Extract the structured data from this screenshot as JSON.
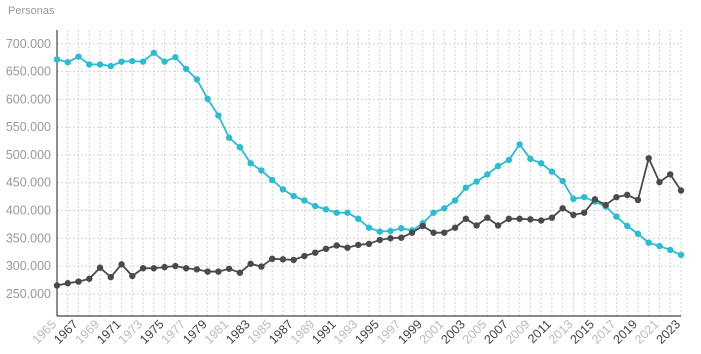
{
  "chart_data": {
    "type": "line",
    "ylabel": "Personas",
    "ylim": [
      210000,
      725000
    ],
    "yticks": [
      250000,
      300000,
      350000,
      400000,
      450000,
      500000,
      550000,
      600000,
      650000,
      700000
    ],
    "ytick_labels": [
      "250.000",
      "300.000",
      "350.000",
      "400.000",
      "450.000",
      "500.000",
      "550.000",
      "600.000",
      "650.000",
      "700.000"
    ],
    "x": [
      1965,
      1966,
      1967,
      1968,
      1969,
      1970,
      1971,
      1972,
      1973,
      1974,
      1975,
      1976,
      1977,
      1978,
      1979,
      1980,
      1981,
      1982,
      1983,
      1984,
      1985,
      1986,
      1987,
      1988,
      1989,
      1990,
      1991,
      1992,
      1993,
      1994,
      1995,
      1996,
      1997,
      1998,
      1999,
      2000,
      2001,
      2002,
      2003,
      2004,
      2005,
      2006,
      2007,
      2008,
      2009,
      2010,
      2011,
      2012,
      2013,
      2014,
      2015,
      2016,
      2017,
      2018,
      2019,
      2020,
      2021,
      2022,
      2023
    ],
    "xtick_labels": [
      "1965",
      "1967",
      "1969",
      "1971",
      "1973",
      "1975",
      "1977",
      "1979",
      "1981",
      "1983",
      "1985",
      "1987",
      "1989",
      "1991",
      "1993",
      "1995",
      "1997",
      "1999",
      "2001",
      "2003",
      "2005",
      "2007",
      "2009",
      "2011",
      "2013",
      "2015",
      "2017",
      "2019",
      "2021",
      "2023"
    ],
    "xtick_dim": [
      true,
      false,
      true,
      false,
      true,
      false,
      true,
      false,
      true,
      false,
      true,
      false,
      true,
      false,
      true,
      false,
      true,
      false,
      true,
      false,
      true,
      false,
      true,
      false,
      true,
      false,
      true,
      false,
      true,
      false
    ],
    "grid": true,
    "series": [
      {
        "color": "#2bbcd4",
        "values": [
          672000,
          667000,
          677000,
          663000,
          663000,
          660000,
          668000,
          669000,
          668000,
          684000,
          668000,
          676000,
          655000,
          636000,
          601000,
          571000,
          531000,
          514000,
          485000,
          472000,
          455000,
          438000,
          426000,
          418000,
          408000,
          402000,
          396000,
          396000,
          385000,
          369000,
          362000,
          363000,
          368000,
          364000,
          377000,
          396000,
          404000,
          418000,
          441000,
          452000,
          465000,
          480000,
          491000,
          519000,
          493000,
          485000,
          470000,
          453000,
          421000,
          424000,
          416000,
          407000,
          389000,
          372000,
          358000,
          342000,
          336000,
          329000,
          320000
        ]
      },
      {
        "color": "#4a4a4a",
        "values": [
          265000,
          269000,
          272000,
          277000,
          297000,
          280000,
          303000,
          282000,
          296000,
          296000,
          298000,
          300000,
          296000,
          294000,
          290000,
          290000,
          295000,
          288000,
          304000,
          299000,
          313000,
          312000,
          311000,
          318000,
          324000,
          331000,
          337000,
          333000,
          338000,
          340000,
          347000,
          350000,
          351000,
          360000,
          372000,
          360000,
          360000,
          369000,
          385000,
          373000,
          387000,
          373000,
          385000,
          385000,
          384000,
          382000,
          387000,
          404000,
          392000,
          396000,
          420000,
          410000,
          424000,
          428000,
          419000,
          494000,
          451000,
          465000,
          436000
        ]
      }
    ]
  }
}
